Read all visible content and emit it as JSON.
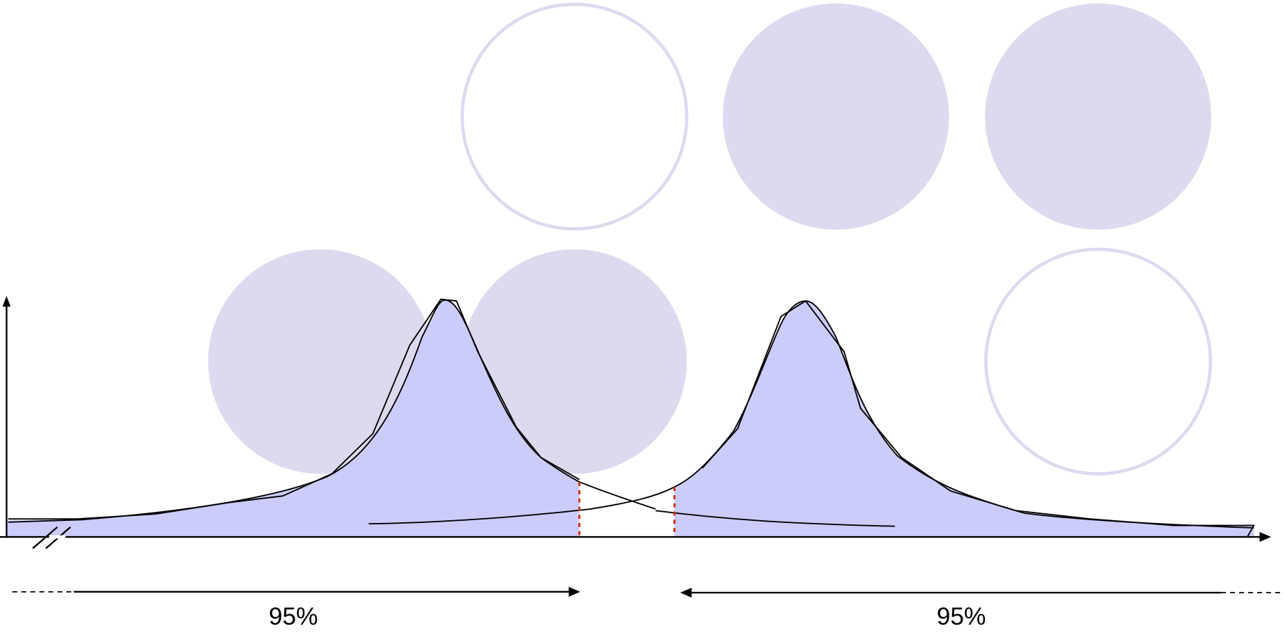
{
  "arrows": [
    {
      "label": "95%"
    },
    {
      "label": "95%"
    }
  ]
}
